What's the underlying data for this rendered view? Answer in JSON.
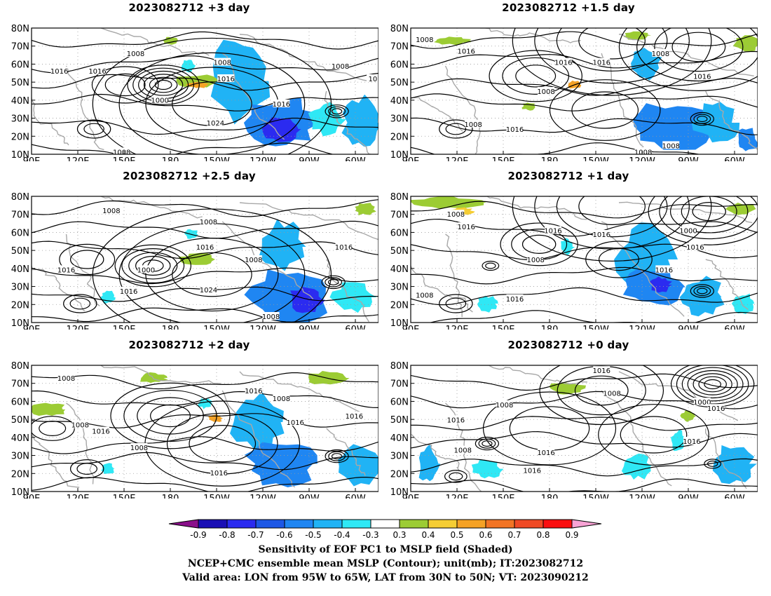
{
  "panels": [
    {
      "title": "2023082712 +3 day",
      "contour_labels": [
        "1008",
        "1016",
        "1008",
        "1008",
        "1016",
        "1000",
        "1016",
        "1024",
        "1016",
        "1008",
        "101"
      ]
    },
    {
      "title": "2023082712 +1.5 day",
      "contour_labels": [
        "1008",
        "1016",
        "1016",
        "1016",
        "1008",
        "1008",
        "1016",
        "1008",
        "1016",
        "1008",
        "1008"
      ]
    },
    {
      "title": "2023082712 +2.5 day",
      "contour_labels": [
        "1008",
        "1008",
        "1016",
        "1016",
        "1000",
        "1016",
        "1024",
        "1008",
        "1016",
        "1008"
      ]
    },
    {
      "title": "2023082712 +1 day",
      "contour_labels": [
        "1008",
        "1016",
        "1016",
        "1016",
        "1008",
        "1000",
        "1016",
        "1016",
        "1008",
        "1016"
      ]
    },
    {
      "title": "2023082712 +2 day",
      "contour_labels": [
        "1008",
        "1016",
        "1008",
        "1008",
        "1016",
        "1008",
        "1016",
        "1016",
        "1016"
      ]
    },
    {
      "title": "2023082712 +0 day",
      "contour_labels": [
        "1016",
        "1008",
        "1008",
        "1016",
        "1008",
        "1016",
        "1016",
        "1000",
        "1016",
        "1016"
      ]
    }
  ],
  "axes": {
    "x_ticks": [
      "90E",
      "120E",
      "150E",
      "180",
      "150W",
      "120W",
      "90W",
      "60W"
    ],
    "y_ticks": [
      "80N",
      "70N",
      "60N",
      "50N",
      "40N",
      "30N",
      "20N",
      "10N"
    ],
    "lon_range": [
      "90E",
      "45W"
    ],
    "lat_range": [
      10,
      80
    ]
  },
  "colorbar": {
    "labels": [
      "-0.9",
      "-0.8",
      "-0.7",
      "-0.6",
      "-0.5",
      "-0.4",
      "-0.3",
      "0.3",
      "0.4",
      "0.5",
      "0.6",
      "0.7",
      "0.8",
      "0.9"
    ],
    "colors": [
      "#8a0f8a",
      "#1a0fb5",
      "#2b2bf0",
      "#1d58e6",
      "#1f86f2",
      "#20b3f5",
      "#2fe8f5",
      "#ffffff",
      "#9ccc34",
      "#f5cd34",
      "#f5a225",
      "#f27424",
      "#ef4a25",
      "#fb0f10",
      "#f8a3d5"
    ]
  },
  "caption": {
    "line1": "Sensitivity of EOF PC1 to MSLP field (Shaded)",
    "line2": "NCEP+CMC ensemble mean MSLP (Contour); unit(mb); IT:2023082712",
    "line3": "Valid area: LON from 95W to 65W, LAT from 30N to 50N; VT: 2023090212"
  },
  "colors": {
    "contour": "#000000",
    "coastline": "#a8a8a8",
    "grid": "#9a9a9a",
    "negative": "#20b3f5",
    "positive": "#9ccc34"
  }
}
